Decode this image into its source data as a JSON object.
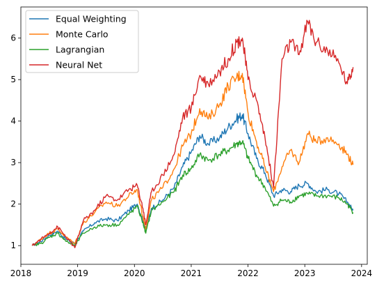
{
  "chart_data": {
    "type": "line",
    "title": "",
    "xlabel": "",
    "ylabel": "",
    "xlim": [
      2018.0,
      2024.1
    ],
    "ylim": [
      0.55,
      6.75
    ],
    "x_ticks": [
      "2018",
      "2019",
      "2020",
      "2021",
      "2022",
      "2023",
      "2024"
    ],
    "y_ticks": [
      "1",
      "2",
      "3",
      "4",
      "5",
      "6"
    ],
    "grid": false,
    "legend_position": "upper-left",
    "series": [
      {
        "name": "Equal Weighting",
        "color": "#1f77b4",
        "x": [
          2018.2,
          2018.35,
          2018.5,
          2018.65,
          2018.8,
          2018.95,
          2019.1,
          2019.3,
          2019.5,
          2019.7,
          2019.9,
          2020.05,
          2020.15,
          2020.2,
          2020.3,
          2020.5,
          2020.7,
          2020.85,
          2021.0,
          2021.15,
          2021.3,
          2021.5,
          2021.65,
          2021.8,
          2021.9,
          2022.0,
          2022.15,
          2022.3,
          2022.45,
          2022.6,
          2022.75,
          2022.9,
          2023.05,
          2023.2,
          2023.4,
          2023.6,
          2023.75,
          2023.85
        ],
        "y": [
          1.0,
          1.1,
          1.25,
          1.35,
          1.15,
          1.05,
          1.35,
          1.55,
          1.65,
          1.6,
          1.85,
          2.0,
          1.6,
          1.4,
          1.9,
          2.1,
          2.4,
          2.9,
          3.25,
          3.65,
          3.45,
          3.6,
          3.85,
          4.05,
          4.15,
          3.7,
          3.1,
          2.75,
          2.2,
          2.35,
          2.3,
          2.45,
          2.5,
          2.3,
          2.35,
          2.25,
          2.05,
          1.85
        ]
      },
      {
        "name": "Monte Carlo",
        "color": "#ff7f0e",
        "x": [
          2018.2,
          2018.35,
          2018.5,
          2018.65,
          2018.8,
          2018.95,
          2019.1,
          2019.3,
          2019.5,
          2019.7,
          2019.9,
          2020.05,
          2020.15,
          2020.2,
          2020.3,
          2020.5,
          2020.7,
          2020.85,
          2021.0,
          2021.15,
          2021.3,
          2021.5,
          2021.65,
          2021.8,
          2021.9,
          2022.0,
          2022.15,
          2022.3,
          2022.45,
          2022.6,
          2022.75,
          2022.9,
          2023.05,
          2023.2,
          2023.4,
          2023.6,
          2023.75,
          2023.85
        ],
        "y": [
          1.0,
          1.15,
          1.3,
          1.4,
          1.2,
          1.05,
          1.55,
          1.8,
          2.05,
          1.95,
          2.2,
          2.35,
          1.7,
          1.4,
          2.1,
          2.4,
          2.85,
          3.4,
          3.7,
          4.3,
          4.05,
          4.4,
          4.85,
          5.05,
          5.15,
          4.2,
          3.5,
          2.9,
          2.3,
          2.9,
          3.3,
          3.0,
          3.7,
          3.5,
          3.6,
          3.45,
          3.2,
          2.95
        ]
      },
      {
        "name": "Lagrangian",
        "color": "#2ca02c",
        "x": [
          2018.2,
          2018.35,
          2018.5,
          2018.65,
          2018.8,
          2018.95,
          2019.1,
          2019.3,
          2019.5,
          2019.7,
          2019.9,
          2020.05,
          2020.15,
          2020.2,
          2020.3,
          2020.5,
          2020.7,
          2020.85,
          2021.0,
          2021.15,
          2021.3,
          2021.5,
          2021.65,
          2021.8,
          2021.9,
          2022.0,
          2022.15,
          2022.3,
          2022.45,
          2022.6,
          2022.75,
          2022.9,
          2023.05,
          2023.2,
          2023.4,
          2023.6,
          2023.75,
          2023.85
        ],
        "y": [
          1.0,
          1.05,
          1.2,
          1.3,
          1.1,
          1.0,
          1.3,
          1.45,
          1.5,
          1.5,
          1.75,
          1.95,
          1.55,
          1.3,
          1.85,
          2.05,
          2.3,
          2.7,
          2.85,
          3.2,
          3.05,
          3.2,
          3.3,
          3.45,
          3.5,
          3.1,
          2.7,
          2.4,
          1.95,
          2.1,
          2.05,
          2.2,
          2.25,
          2.2,
          2.2,
          2.15,
          2.0,
          1.8
        ]
      },
      {
        "name": "Neural Net",
        "color": "#d62728",
        "x": [
          2018.2,
          2018.35,
          2018.5,
          2018.65,
          2018.8,
          2018.95,
          2019.1,
          2019.3,
          2019.5,
          2019.7,
          2019.9,
          2020.05,
          2020.15,
          2020.2,
          2020.3,
          2020.5,
          2020.7,
          2020.85,
          2021.0,
          2021.15,
          2021.3,
          2021.5,
          2021.65,
          2021.8,
          2021.9,
          2022.0,
          2022.15,
          2022.3,
          2022.45,
          2022.6,
          2022.75,
          2022.9,
          2023.05,
          2023.2,
          2023.4,
          2023.6,
          2023.75,
          2023.85
        ],
        "y": [
          1.0,
          1.15,
          1.3,
          1.45,
          1.2,
          0.95,
          1.6,
          1.85,
          2.2,
          2.1,
          2.35,
          2.45,
          1.9,
          1.5,
          2.3,
          2.7,
          3.2,
          4.1,
          4.3,
          5.1,
          4.9,
          5.2,
          5.5,
          5.9,
          6.0,
          5.0,
          4.5,
          3.6,
          2.4,
          5.5,
          5.9,
          5.6,
          6.4,
          5.9,
          5.7,
          5.4,
          4.9,
          5.3
        ]
      }
    ]
  }
}
